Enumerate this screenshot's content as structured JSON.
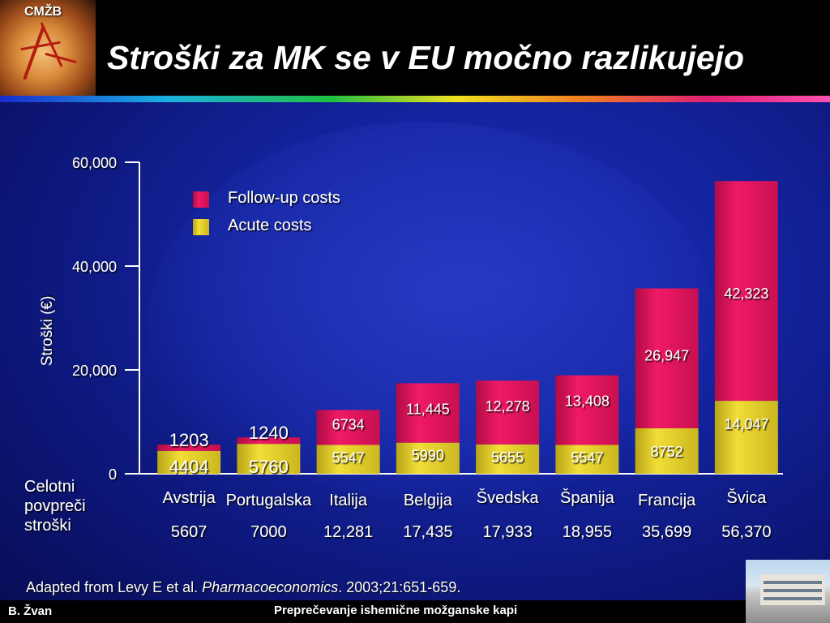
{
  "header": {
    "logo_text": "CMŽB",
    "title": "Stroški za MK se v EU močno razlikujejo"
  },
  "colors": {
    "follow_up": "#e0145a",
    "acute": "#e6d12a",
    "background": "#1424a0"
  },
  "chart_data": {
    "type": "bar",
    "stacked": true,
    "ylabel": "Stroški (€)",
    "ylim": [
      0,
      60000
    ],
    "yticks": [
      "0",
      "20,000",
      "40,000",
      "60,000"
    ],
    "legend_position": "top-left",
    "categories": [
      "Avstrija",
      "Portugalska",
      "Italija",
      "Belgija",
      "Švedska",
      "Španija",
      "Francija",
      "Švica"
    ],
    "series": [
      {
        "name": "Acute costs",
        "values": [
          4404,
          5760,
          5547,
          5990,
          5655,
          5547,
          8752,
          14047
        ],
        "labels": [
          "4404",
          "5760",
          "5547",
          "5990",
          "5655",
          "5547",
          "8752",
          "14,047"
        ]
      },
      {
        "name": "Follow-up costs",
        "values": [
          1203,
          1240,
          6734,
          11445,
          12278,
          13408,
          26947,
          42323
        ],
        "labels": [
          "1203",
          "1240",
          "6734",
          "11,445",
          "12,278",
          "13,408",
          "26,947",
          "42,323"
        ]
      }
    ],
    "totals_label": "Celotni povpreči stroški",
    "totals": [
      "5607",
      "7000",
      "12,281",
      "17,435",
      "17,933",
      "18,955",
      "35,699",
      "56,370"
    ]
  },
  "footer": {
    "reference_prefix": "Adapted from Levy E et al. ",
    "reference_journal": "Pharmacoeconomics",
    "reference_suffix": ". 2003;21:651-659.",
    "author": "B. Žvan",
    "title": "Preprečevanje ishemične možganske kapi"
  }
}
